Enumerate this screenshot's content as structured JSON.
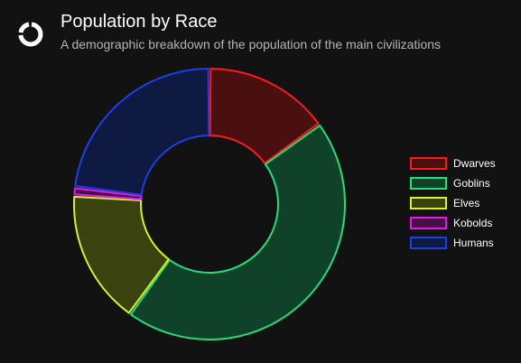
{
  "header": {
    "title": "Population by Race",
    "subtitle": "A demographic breakdown of the population of the main civilizations",
    "logo_icon": "donut-chart-icon"
  },
  "chart_data": {
    "type": "pie",
    "variant": "doughnut",
    "title": "Population by Race",
    "subtitle": "A demographic breakdown of the population of the main civilizations",
    "categories": [
      "Dwarves",
      "Goblins",
      "Elves",
      "Kobolds",
      "Humans"
    ],
    "values": [
      15,
      45,
      16,
      1,
      23
    ],
    "colors": {
      "border": [
        "#ff1a1a",
        "#1fe07a",
        "#d9f21f",
        "#e61ae6",
        "#1a40e6"
      ],
      "fill": [
        "#4a0f0f",
        "#0f4228",
        "#3a420f",
        "#470f47",
        "#0f1a42"
      ]
    },
    "legend_position": "right"
  }
}
